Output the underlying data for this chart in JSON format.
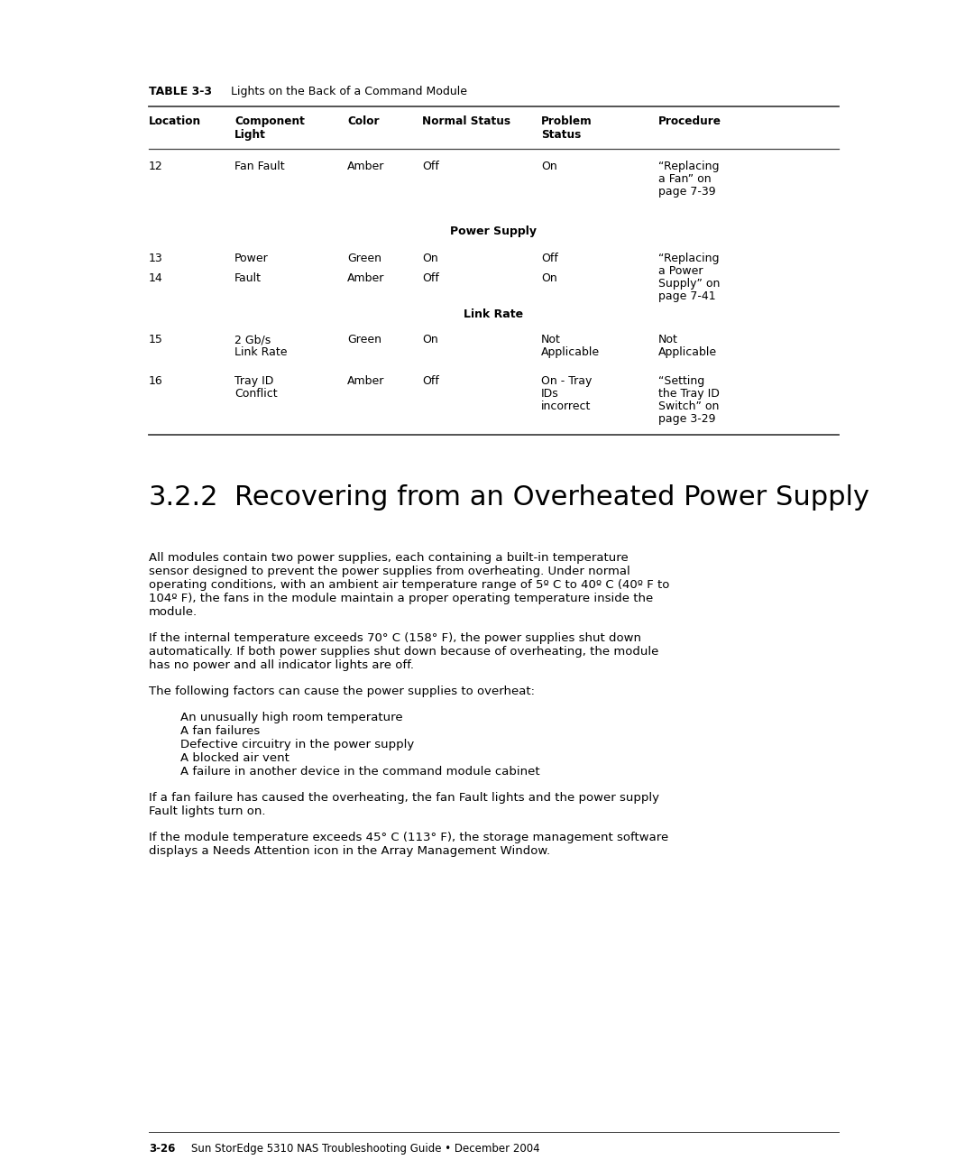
{
  "page_bg": "#ffffff",
  "table_title_bold": "TABLE 3-3",
  "table_title_normal": "    Lights on the Back of a Command Module",
  "col_headers_line1": [
    "Location",
    "Component",
    "Color",
    "Normal Status",
    "Problem",
    "Procedure"
  ],
  "col_headers_line2": [
    "",
    "Light",
    "",
    "",
    "Status",
    ""
  ],
  "section_heading": "3.2.2",
  "section_title": "Recovering from an Overheated Power Supply",
  "body_paragraphs": [
    "All modules contain two power supplies, each containing a built-in temperature\nsensor designed to prevent the power supplies from overheating. Under normal\noperating conditions, with an ambient air temperature range of 5º C to 40º C (40º F to\n104º F), the fans in the module maintain a proper operating temperature inside the\nmodule.",
    "If the internal temperature exceeds 70° C (158° F), the power supplies shut down\nautomatically. If both power supplies shut down because of overheating, the module\nhas no power and all indicator lights are off.",
    "The following factors can cause the power supplies to overheat:"
  ],
  "bullet_items": [
    "An unusually high room temperature",
    "A fan failures",
    "Defective circuitry in the power supply",
    "A blocked air vent",
    "A failure in another device in the command module cabinet"
  ],
  "footer_paragraphs": [
    "If a fan failure has caused the overheating, the fan Fault lights and the power supply\nFault lights turn on.",
    "If the module temperature exceeds 45° C (113° F), the storage management software\ndisplays a Needs Attention icon in the Array Management Window."
  ],
  "footer_bold": "3-26",
  "footer_normal": "    Sun StorEdge 5310 NAS Troubleshooting Guide • December 2004"
}
